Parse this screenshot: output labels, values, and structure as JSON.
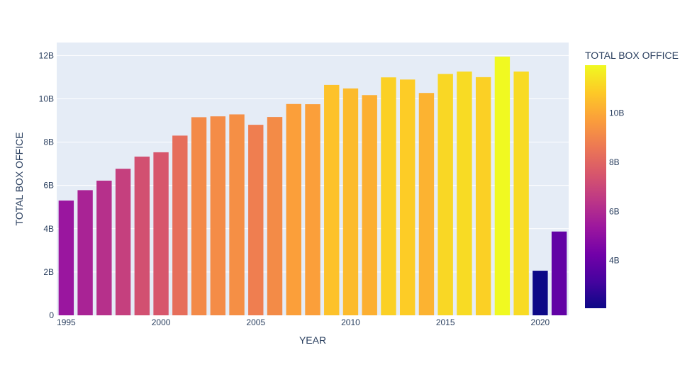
{
  "chart_data": {
    "type": "bar",
    "x": [
      1995,
      1996,
      1997,
      1998,
      1999,
      2000,
      2001,
      2002,
      2003,
      2004,
      2005,
      2006,
      2007,
      2008,
      2009,
      2010,
      2011,
      2012,
      2013,
      2014,
      2015,
      2016,
      2017,
      2018,
      2019,
      2020,
      2021
    ],
    "values": [
      5.3,
      5.78,
      6.22,
      6.77,
      7.33,
      7.53,
      8.3,
      9.15,
      9.19,
      9.28,
      8.8,
      9.16,
      9.76,
      9.75,
      10.64,
      10.48,
      10.17,
      10.99,
      10.89,
      10.27,
      11.15,
      11.26,
      11.0,
      11.95,
      11.26,
      2.06,
      3.87
    ],
    "value_unit": "B",
    "xlabel": "YEAR",
    "ylabel": "TOTAL BOX OFFICE",
    "ylim": [
      0,
      12.6
    ],
    "y_ticks": [
      0,
      2,
      4,
      6,
      8,
      10,
      12
    ],
    "y_tick_labels": [
      "0",
      "2B",
      "4B",
      "6B",
      "8B",
      "10B",
      "12B"
    ],
    "x_ticks": [
      1995,
      2000,
      2005,
      2010,
      2015,
      2020
    ],
    "x_tick_labels": [
      "1995",
      "2000",
      "2005",
      "2010",
      "2015",
      "2020"
    ],
    "grid": true,
    "colorbar": {
      "title": "TOTAL BOX OFFICE",
      "range": [
        2.06,
        11.95
      ],
      "ticks": [
        4,
        6,
        8,
        10
      ],
      "tick_labels": [
        "4B",
        "6B",
        "8B",
        "10B"
      ],
      "colorscale": [
        "#0d0887",
        "#46039f",
        "#7201a8",
        "#9c179e",
        "#bd3786",
        "#d8576b",
        "#ed7953",
        "#fb9f3a",
        "#fdca26",
        "#f0f921"
      ]
    },
    "colors": {
      "plot_bg": "#e5ecf6",
      "grid": "#ffffff",
      "text": "#2a3f5f"
    }
  }
}
